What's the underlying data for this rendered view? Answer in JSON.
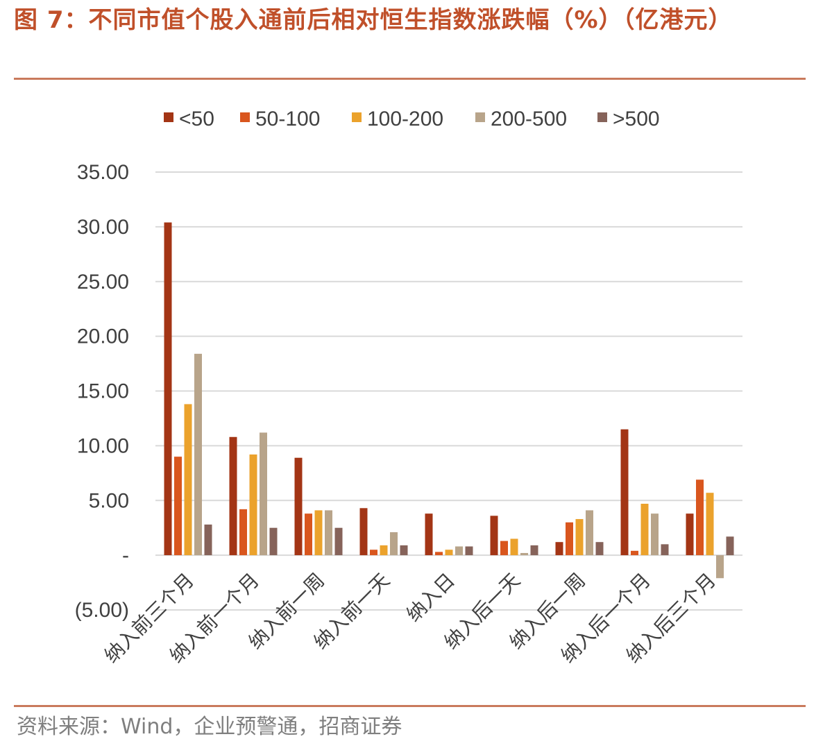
{
  "header": {
    "title": "图 7：不同市值个股入通前后相对恒生指数涨跌幅（%）（亿港元）"
  },
  "footer": {
    "source": "资料来源：Wind，企业预警通，招商证券"
  },
  "colors": {
    "accent": "#c0502a",
    "rule": "#c97a5c",
    "grid": "#d9d9d9",
    "axis_text": "#404040"
  },
  "chart_data": {
    "type": "bar",
    "title": "",
    "xlabel": "",
    "ylabel": "",
    "ylim": [
      -5,
      35
    ],
    "yticks": [
      -5,
      0,
      5,
      10,
      15,
      20,
      25,
      30,
      35
    ],
    "ytick_labels": [
      "(5.00)",
      "-",
      "5.00",
      "10.00",
      "15.00",
      "20.00",
      "25.00",
      "30.00",
      "35.00"
    ],
    "grid": true,
    "legend_position": "top",
    "categories": [
      "纳入前三个月",
      "纳入前一个月",
      "纳入前一周",
      "纳入前一天",
      "纳入日",
      "纳入后一天",
      "纳入后一周",
      "纳入后一个月",
      "纳入后三个月"
    ],
    "series": [
      {
        "name": "<50",
        "color": "#a33515",
        "values": [
          30.4,
          10.8,
          8.9,
          4.3,
          3.8,
          3.6,
          1.2,
          11.5,
          3.8
        ]
      },
      {
        "name": "50-100",
        "color": "#d9561e",
        "values": [
          9.0,
          4.2,
          3.8,
          0.5,
          0.3,
          1.3,
          3.0,
          0.4,
          6.9
        ]
      },
      {
        "name": "100-200",
        "color": "#eba22c",
        "values": [
          13.8,
          9.2,
          4.1,
          0.9,
          0.5,
          1.5,
          3.3,
          4.7,
          5.7
        ]
      },
      {
        "name": "200-500",
        "color": "#b8a48a",
        "values": [
          18.4,
          11.2,
          4.1,
          2.1,
          0.8,
          0.2,
          4.1,
          3.8,
          -2.1
        ]
      },
      {
        "name": ">500",
        "color": "#86635a",
        "values": [
          2.8,
          2.5,
          2.5,
          0.9,
          0.8,
          0.9,
          1.2,
          1.0,
          1.7
        ]
      }
    ]
  }
}
